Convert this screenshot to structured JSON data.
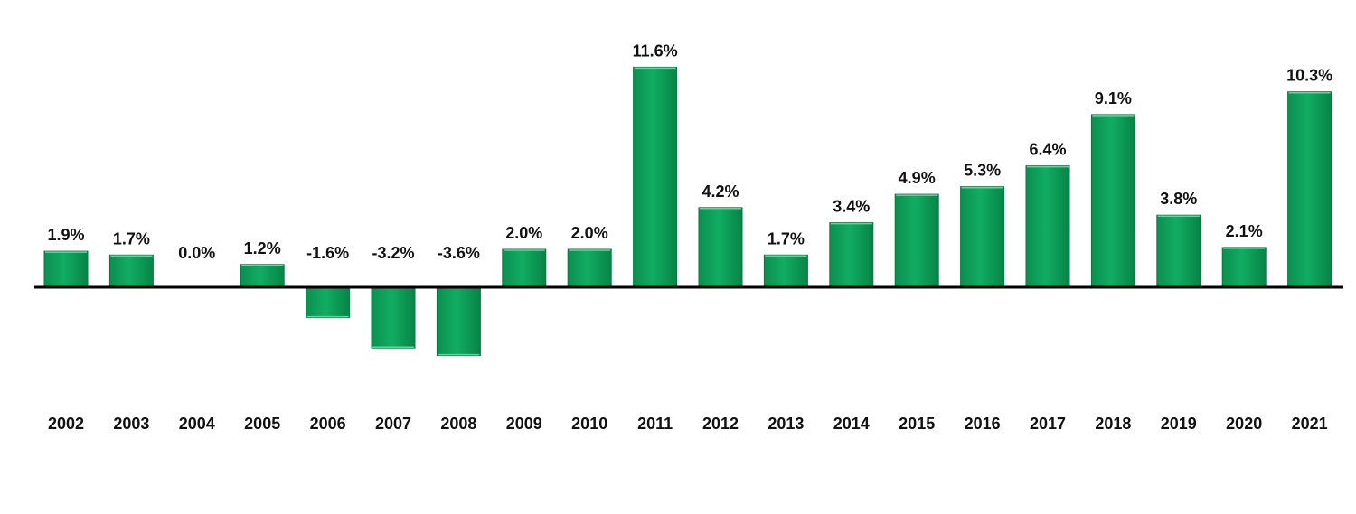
{
  "chart_data": {
    "type": "bar",
    "title": "",
    "xlabel": "",
    "ylabel": "",
    "categories": [
      "2002",
      "2003",
      "2004",
      "2005",
      "2006",
      "2007",
      "2008",
      "2009",
      "2010",
      "2011",
      "2012",
      "2013",
      "2014",
      "2015",
      "2016",
      "2017",
      "2018",
      "2019",
      "2020",
      "2021"
    ],
    "values": [
      1.9,
      1.7,
      0.0,
      1.2,
      -1.6,
      -3.2,
      -3.6,
      2.0,
      2.0,
      11.6,
      4.2,
      1.7,
      3.4,
      4.9,
      5.3,
      6.4,
      9.1,
      3.8,
      2.1,
      10.3
    ],
    "data_labels": [
      "1.9%",
      "1.7%",
      "0.0%",
      "1.2%",
      "-1.6%",
      "-3.2%",
      "-3.6%",
      "2.0%",
      "2.0%",
      "11.6%",
      "4.2%",
      "1.7%",
      "3.4%",
      "4.9%",
      "5.3%",
      "6.4%",
      "9.1%",
      "3.8%",
      "2.1%",
      "10.3%"
    ],
    "ylim": [
      -6,
      12
    ],
    "grid": false,
    "legend": "none",
    "bar_color": "#0aa35a",
    "bar_edge_color": "#067a42",
    "axis_color": "#000000"
  }
}
